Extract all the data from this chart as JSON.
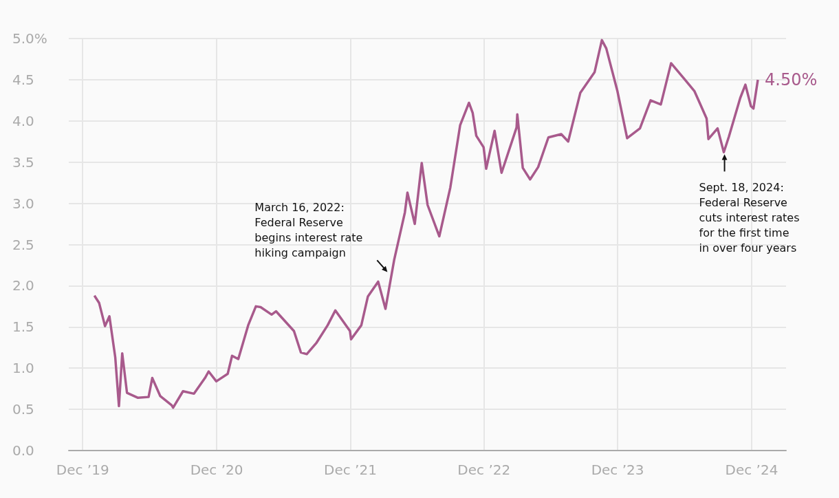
{
  "chart_data": {
    "type": "line",
    "x": [
      "2020-01-02",
      "2020-01-15",
      "2020-01-31",
      "2020-02-12",
      "2020-02-28",
      "2020-03-09",
      "2020-03-18",
      "2020-03-31",
      "2020-04-30",
      "2020-05-29",
      "2020-06-08",
      "2020-06-30",
      "2020-07-31",
      "2020-08-04",
      "2020-08-31",
      "2020-09-30",
      "2020-10-30",
      "2020-11-09",
      "2020-11-30",
      "2020-12-31",
      "2021-01-12",
      "2021-01-29",
      "2021-02-25",
      "2021-03-18",
      "2021-03-31",
      "2021-04-30",
      "2021-05-12",
      "2021-06-30",
      "2021-07-19",
      "2021-08-04",
      "2021-08-31",
      "2021-09-30",
      "2021-10-21",
      "2021-11-30",
      "2021-12-03",
      "2021-12-31",
      "2022-01-18",
      "2022-02-15",
      "2022-03-07",
      "2022-03-31",
      "2022-04-29",
      "2022-05-06",
      "2022-05-26",
      "2022-06-14",
      "2022-06-30",
      "2022-08-01",
      "2022-08-31",
      "2022-09-27",
      "2022-10-21",
      "2022-10-31",
      "2022-11-10",
      "2022-11-30",
      "2022-12-07",
      "2022-12-30",
      "2023-01-18",
      "2023-02-28",
      "2023-03-02",
      "2023-03-17",
      "2023-04-06",
      "2023-04-28",
      "2023-05-26",
      "2023-06-30",
      "2023-07-19",
      "2023-08-21",
      "2023-09-29",
      "2023-10-19",
      "2023-10-31",
      "2023-11-30",
      "2023-12-27",
      "2024-01-31",
      "2024-02-29",
      "2024-03-28",
      "2024-04-25",
      "2024-05-31",
      "2024-06-28",
      "2024-07-31",
      "2024-08-05",
      "2024-08-30",
      "2024-09-16",
      "2024-09-30",
      "2024-10-31",
      "2024-11-14",
      "2024-11-29",
      "2024-12-06",
      "2024-12-18"
    ],
    "series": [
      {
        "color": "#a85a8c",
        "values": [
          1.88,
          1.79,
          1.51,
          1.63,
          1.13,
          0.54,
          1.18,
          0.7,
          0.64,
          0.65,
          0.88,
          0.66,
          0.55,
          0.52,
          0.72,
          0.69,
          0.88,
          0.96,
          0.84,
          0.93,
          1.15,
          1.11,
          1.52,
          1.75,
          1.74,
          1.65,
          1.69,
          1.45,
          1.19,
          1.17,
          1.31,
          1.52,
          1.7,
          1.45,
          1.35,
          1.52,
          1.87,
          2.05,
          1.72,
          2.32,
          2.89,
          3.13,
          2.75,
          3.49,
          2.98,
          2.6,
          3.19,
          3.95,
          4.22,
          4.1,
          3.82,
          3.68,
          3.42,
          3.88,
          3.37,
          3.92,
          4.08,
          3.43,
          3.29,
          3.44,
          3.8,
          3.84,
          3.75,
          4.34,
          4.59,
          4.98,
          4.88,
          4.37,
          3.79,
          3.91,
          4.25,
          4.2,
          4.7,
          4.51,
          4.36,
          4.03,
          3.78,
          3.91,
          3.62,
          3.81,
          4.28,
          4.44,
          4.18,
          4.15,
          4.5
        ],
        "value_labels": [
          null,
          null,
          null,
          null,
          null,
          null,
          null,
          null,
          null,
          null,
          null,
          null,
          null,
          null,
          null,
          null,
          null,
          null,
          null,
          null,
          null,
          null,
          null,
          null,
          null,
          null,
          null,
          null,
          null,
          null,
          null,
          null,
          null,
          null,
          null,
          null,
          null,
          null,
          null,
          null,
          null,
          null,
          null,
          null,
          null,
          null,
          null,
          null,
          null,
          null,
          null,
          null,
          null,
          null,
          null,
          null,
          null,
          null,
          null,
          null,
          null,
          null,
          null,
          null,
          null,
          null,
          null,
          null,
          null,
          null,
          null,
          null,
          null,
          null,
          null,
          null,
          null,
          null,
          null,
          null,
          null,
          null,
          null,
          null,
          "4.50%"
        ]
      }
    ],
    "xlim": [
      "2019-10-24",
      "2025-03-05"
    ],
    "xticks": [
      {
        "value": "2019-12-01",
        "label": "Dec ’19"
      },
      {
        "value": "2020-12-01",
        "label": "Dec ’20"
      },
      {
        "value": "2021-12-01",
        "label": "Dec ’21"
      },
      {
        "value": "2022-12-01",
        "label": "Dec ’22"
      },
      {
        "value": "2023-12-01",
        "label": "Dec ’23"
      },
      {
        "value": "2024-12-01",
        "label": "Dec ’24"
      }
    ],
    "ylim": [
      0,
      5
    ],
    "yticks": [
      {
        "value": 0,
        "label": "0.0"
      },
      {
        "value": 0.5,
        "label": "0.5"
      },
      {
        "value": 1,
        "label": "1.0"
      },
      {
        "value": 1.5,
        "label": "1.5"
      },
      {
        "value": 2,
        "label": "2.0"
      },
      {
        "value": 2.5,
        "label": "2.5"
      },
      {
        "value": 3,
        "label": "3.0"
      },
      {
        "value": 3.5,
        "label": "3.5"
      },
      {
        "value": 4,
        "label": "4.0"
      },
      {
        "value": 4.5,
        "label": "4.5"
      },
      {
        "value": 5,
        "label": "5.0%"
      }
    ],
    "annotations": [
      {
        "text": "March 16, 2022:\nFederal Reserve\nbegins interest rate\nhiking campaign",
        "x": "2022-03-16",
        "y": 2.15
      },
      {
        "text": "Sept. 18, 2024:\nFederal Reserve\ncuts interest rates\nfor the first time\nin over four years",
        "x": "2024-09-18",
        "y": 3.62
      }
    ],
    "grid": true,
    "marker": "none",
    "line_style": "solid"
  }
}
